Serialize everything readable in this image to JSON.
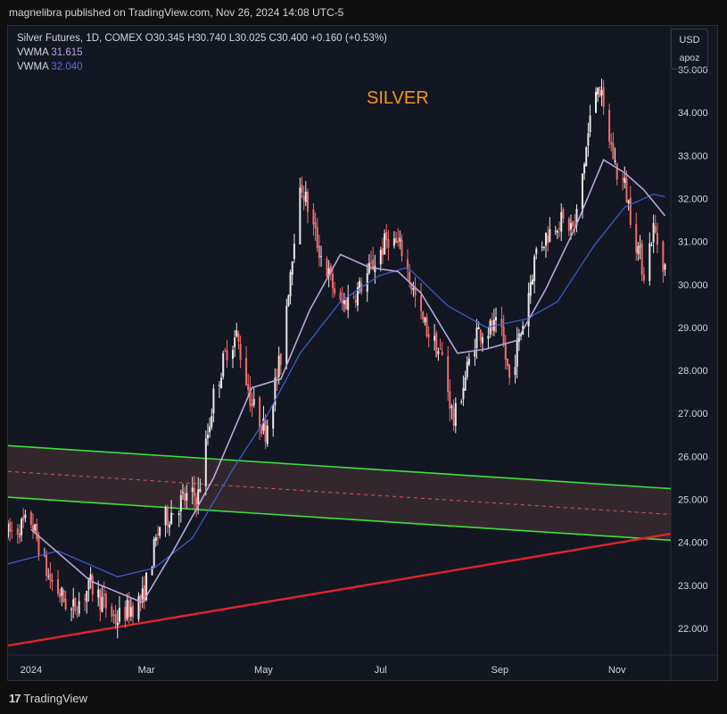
{
  "header": {
    "published_text": "magnelibra published on TradingView.com, Nov 26, 2024 14:08 UTC-5"
  },
  "legend": {
    "symbol_line": "Silver Futures, 1D, COMEX  O30.345  H30.740  L30.025  C30.400  +0.160 (+0.53%)",
    "indicators": [
      {
        "name": "VWMA",
        "value": "31.615"
      },
      {
        "name": "VWMA",
        "value": "32.040"
      }
    ]
  },
  "overlay_title": "SILVER",
  "currency_box": {
    "currency": "USD",
    "scale": "apoz"
  },
  "footer": {
    "brand": "TradingView",
    "brand_icon": "tradingview-logo-icon"
  },
  "colors": {
    "background": "#131722",
    "candle_up": "#e8e8e8",
    "candle_down": "#f26b6b",
    "vwma_fast": "#b6a7d8",
    "vwma_slow": "#3d5fd8",
    "channel_lines": "#3ee03e",
    "channel_fill": "#3a2a30",
    "channel_mid": "#d9535f",
    "support_line": "#e0242a",
    "title": "#f7931a"
  },
  "chart_data": {
    "type": "candlestick",
    "title": "SILVER",
    "timeframe": "1D",
    "x_range": [
      "2023-12-20",
      "2024-11-29"
    ],
    "ylim": [
      21.6,
      35.9
    ],
    "y_ticks": [
      "22.000",
      "23.000",
      "24.000",
      "25.000",
      "26.000",
      "27.000",
      "28.000",
      "29.000",
      "30.000",
      "31.000",
      "32.000",
      "33.000",
      "34.000",
      "35.000"
    ],
    "x_ticks": [
      {
        "label": "2024",
        "date": "2024-01-01"
      },
      {
        "label": "Mar",
        "date": "2024-03-01"
      },
      {
        "label": "May",
        "date": "2024-05-01"
      },
      {
        "label": "Jul",
        "date": "2024-07-01"
      },
      {
        "label": "Sep",
        "date": "2024-09-01"
      },
      {
        "label": "Nov",
        "date": "2024-11-01"
      }
    ],
    "price_path": [
      [
        "2023-12-20",
        24.2
      ],
      [
        "2024-01-01",
        24.5
      ],
      [
        "2024-01-10",
        23.2
      ],
      [
        "2024-01-22",
        22.4
      ],
      [
        "2024-02-01",
        23.0
      ],
      [
        "2024-02-14",
        22.2
      ],
      [
        "2024-02-28",
        22.7
      ],
      [
        "2024-03-08",
        24.4
      ],
      [
        "2024-03-20",
        25.0
      ],
      [
        "2024-03-28",
        25.1
      ],
      [
        "2024-04-05",
        27.4
      ],
      [
        "2024-04-12",
        28.5
      ],
      [
        "2024-04-17",
        28.8
      ],
      [
        "2024-04-25",
        27.2
      ],
      [
        "2024-05-02",
        26.6
      ],
      [
        "2024-05-10",
        28.3
      ],
      [
        "2024-05-17",
        31.2
      ],
      [
        "2024-05-21",
        32.3
      ],
      [
        "2024-05-30",
        30.8
      ],
      [
        "2024-06-10",
        29.5
      ],
      [
        "2024-06-20",
        29.9
      ],
      [
        "2024-07-05",
        31.1
      ],
      [
        "2024-07-12",
        30.8
      ],
      [
        "2024-07-22",
        29.2
      ],
      [
        "2024-08-02",
        28.3
      ],
      [
        "2024-08-08",
        26.8
      ],
      [
        "2024-08-20",
        28.9
      ],
      [
        "2024-09-01",
        29.0
      ],
      [
        "2024-09-06",
        27.8
      ],
      [
        "2024-09-12",
        28.9
      ],
      [
        "2024-09-20",
        30.8
      ],
      [
        "2024-10-01",
        31.5
      ],
      [
        "2024-10-10",
        31.3
      ],
      [
        "2024-10-18",
        33.8
      ],
      [
        "2024-10-22",
        34.8
      ],
      [
        "2024-10-25",
        34.0
      ],
      [
        "2024-11-01",
        32.6
      ],
      [
        "2024-11-05",
        32.3
      ],
      [
        "2024-11-11",
        31.0
      ],
      [
        "2024-11-15",
        30.3
      ],
      [
        "2024-11-20",
        31.3
      ],
      [
        "2024-11-26",
        30.4
      ]
    ],
    "vwma_fast": [
      [
        "2024-01-01",
        24.3
      ],
      [
        "2024-02-01",
        23.1
      ],
      [
        "2024-02-28",
        22.6
      ],
      [
        "2024-03-15",
        23.8
      ],
      [
        "2024-04-05",
        25.5
      ],
      [
        "2024-04-25",
        27.6
      ],
      [
        "2024-05-10",
        27.8
      ],
      [
        "2024-05-25",
        29.4
      ],
      [
        "2024-06-10",
        30.7
      ],
      [
        "2024-06-25",
        30.4
      ],
      [
        "2024-07-10",
        30.3
      ],
      [
        "2024-07-22",
        29.8
      ],
      [
        "2024-08-10",
        28.4
      ],
      [
        "2024-08-25",
        28.5
      ],
      [
        "2024-09-10",
        28.7
      ],
      [
        "2024-09-25",
        29.9
      ],
      [
        "2024-10-10",
        31.3
      ],
      [
        "2024-10-25",
        32.9
      ],
      [
        "2024-11-05",
        32.6
      ],
      [
        "2024-11-15",
        32.2
      ],
      [
        "2024-11-26",
        31.6
      ]
    ],
    "vwma_slow": [
      [
        "2023-12-20",
        23.5
      ],
      [
        "2024-01-15",
        23.8
      ],
      [
        "2024-02-15",
        23.2
      ],
      [
        "2024-03-05",
        23.4
      ],
      [
        "2024-03-25",
        24.1
      ],
      [
        "2024-04-15",
        25.7
      ],
      [
        "2024-05-01",
        26.8
      ],
      [
        "2024-05-20",
        28.4
      ],
      [
        "2024-06-10",
        29.6
      ],
      [
        "2024-06-30",
        30.2
      ],
      [
        "2024-07-15",
        30.4
      ],
      [
        "2024-08-05",
        29.5
      ],
      [
        "2024-08-25",
        29.0
      ],
      [
        "2024-09-15",
        29.2
      ],
      [
        "2024-10-01",
        29.6
      ],
      [
        "2024-10-20",
        30.9
      ],
      [
        "2024-11-05",
        31.8
      ],
      [
        "2024-11-20",
        32.1
      ],
      [
        "2024-11-26",
        32.04
      ]
    ],
    "channel": {
      "upper": [
        [
          "2023-12-20",
          26.25
        ],
        [
          "2024-11-29",
          25.25
        ]
      ],
      "mid": [
        [
          "2023-12-20",
          25.65
        ],
        [
          "2024-11-29",
          24.65
        ]
      ],
      "lower": [
        [
          "2023-12-20",
          25.05
        ],
        [
          "2024-11-29",
          24.05
        ]
      ]
    },
    "support_line": [
      [
        "2023-12-20",
        21.6
      ],
      [
        "2024-11-29",
        24.2
      ]
    ],
    "last_close": 30.4,
    "last_values": {
      "vwma_fast": 31.615,
      "vwma_slow": 32.04
    }
  }
}
